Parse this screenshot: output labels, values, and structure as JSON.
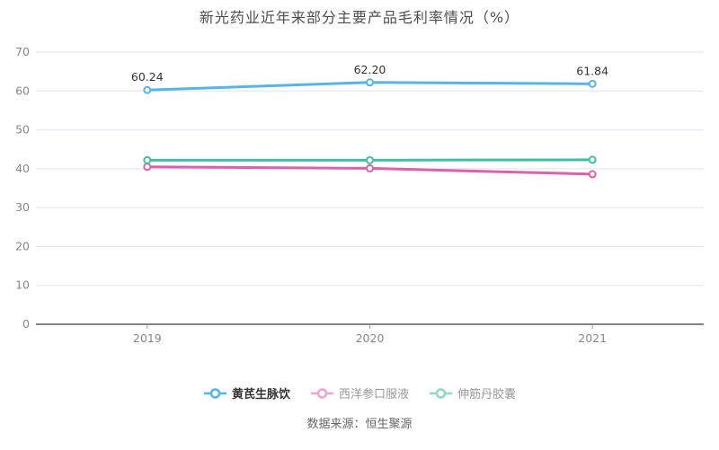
{
  "chart_data": {
    "type": "line",
    "title": "新光药业近年来部分主要产品毛利率情况（%）",
    "categories": [
      "2019",
      "2020",
      "2021"
    ],
    "series": [
      {
        "name": "黄芪生脉饮",
        "values": [
          60.24,
          62.2,
          61.84
        ],
        "labels": [
          "60.24",
          "62.20",
          "61.84"
        ],
        "color": "#55b5e9",
        "show_labels": true
      },
      {
        "name": "西洋参口服液",
        "values": [
          40.5,
          40.1,
          38.6
        ],
        "color": "#de5fad",
        "show_labels": false
      },
      {
        "name": "伸筋丹胶囊",
        "values": [
          42.2,
          42.2,
          42.3
        ],
        "color": "#3fc0a0",
        "show_labels": false
      }
    ],
    "ylim": [
      0,
      70
    ],
    "ytick_step": 10,
    "grid": true,
    "legend_position": "bottom",
    "xlabel": "",
    "ylabel": ""
  },
  "legend": {
    "items": [
      {
        "label": "黄芪生脉饮",
        "marker_color": "#55b5e9",
        "active": true
      },
      {
        "label": "西洋参口服液",
        "marker_color": "#f2a6ce",
        "active": false
      },
      {
        "label": "伸筋丹胶囊",
        "marker_color": "#8fd8c3",
        "active": false
      }
    ]
  },
  "source_note": "数据来源：恒生聚源",
  "colors": {
    "grid_line": "#e4e8f1",
    "axis_line": "#5c5c66",
    "axis_text": "#888888",
    "data_label": "#333333",
    "title_text": "#4d4d4d",
    "point_fill": "#ffffff"
  }
}
